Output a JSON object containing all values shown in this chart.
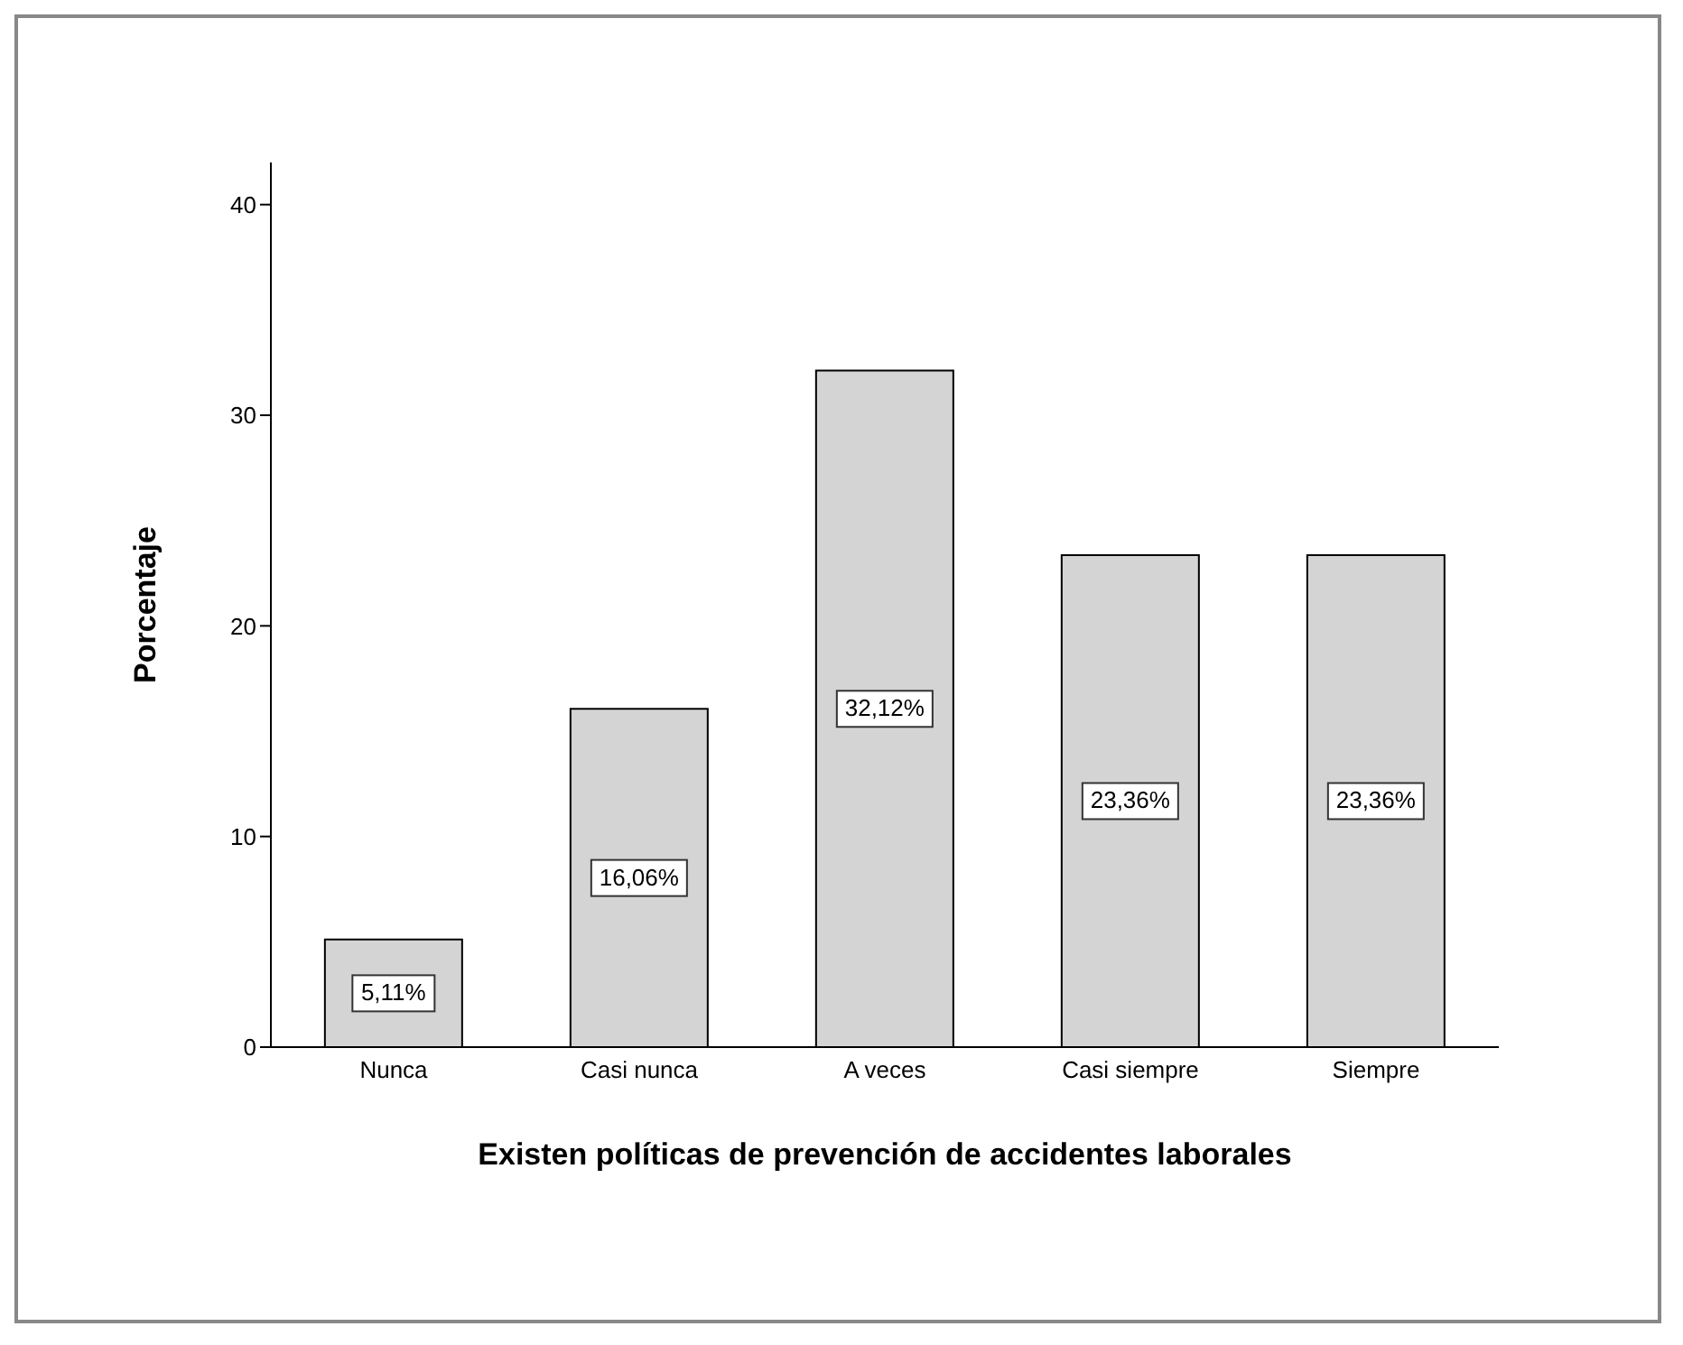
{
  "chart_data": {
    "type": "bar",
    "xlabel": "Existen políticas de prevención de accidentes laborales",
    "ylabel": "Porcentaje",
    "categories": [
      "Nunca",
      "Casi nunca",
      "A veces",
      "Casi siempre",
      "Siempre"
    ],
    "values": [
      5.11,
      16.06,
      32.12,
      23.36,
      23.36
    ],
    "value_labels": [
      "5,11%",
      "16,06%",
      "32,12%",
      "23,36%",
      "23,36%"
    ],
    "color": "#d4d4d4",
    "ylim": [
      0,
      42
    ],
    "yticks": [
      0,
      10,
      20,
      30,
      40
    ],
    "grid": false
  }
}
